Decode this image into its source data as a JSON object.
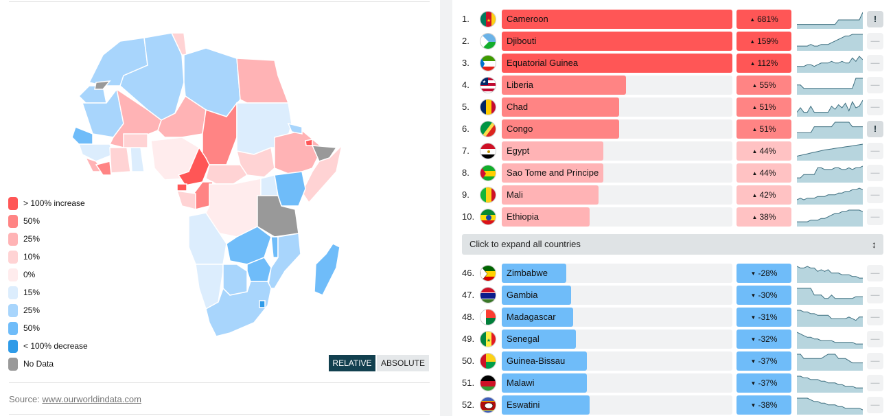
{
  "legend": {
    "items": [
      {
        "label": "> 100% increase",
        "color": "#ff5656"
      },
      {
        "label": "50%",
        "color": "#ff8484"
      },
      {
        "label": "25%",
        "color": "#ffb3b5"
      },
      {
        "label": "10%",
        "color": "#ffd3d4"
      },
      {
        "label": "0%",
        "color": "#ffeced"
      },
      {
        "label": "15%",
        "color": "#dcedfd"
      },
      {
        "label": "25%",
        "color": "#a8d5fc"
      },
      {
        "label": "50%",
        "color": "#6fbcf9"
      },
      {
        "label": "< 100% decrease",
        "color": "#2f9be8"
      },
      {
        "label": "No Data",
        "color": "#999999"
      }
    ]
  },
  "toggle": {
    "relative_label": "RELATIVE",
    "absolute_label": "ABSOLUTE",
    "active": "relative"
  },
  "source": {
    "prefix": "Source: ",
    "link_text": "www.ourworldindata.com"
  },
  "map": {
    "region": "Africa",
    "accent_dark": "#12404f"
  },
  "expand_label": "Click to expand all countries",
  "expand_icon": "updown-arrow-icon",
  "top_countries": [
    {
      "rank": "1.",
      "name": "Cameroon",
      "change": "681%",
      "direction": "up",
      "fill": 1.0,
      "tier": "high",
      "alert": true,
      "flag": "cameroon-flag-icon",
      "trend": [
        2,
        2,
        2,
        2,
        2,
        2,
        2,
        2,
        2,
        2,
        2,
        2,
        5,
        5,
        5,
        5,
        5,
        5,
        5,
        10
      ]
    },
    {
      "rank": "2.",
      "name": "Djibouti",
      "change": "159%",
      "direction": "up",
      "fill": 1.0,
      "tier": "high",
      "alert": false,
      "flag": "djibouti-flag-icon",
      "trend": [
        2,
        2,
        2,
        2,
        3,
        2,
        2,
        3,
        3,
        3,
        4,
        5,
        6,
        7,
        8,
        8,
        9,
        9,
        9,
        9
      ]
    },
    {
      "rank": "3.",
      "name": "Equatorial Guinea",
      "change": "112%",
      "direction": "up",
      "fill": 1.0,
      "tier": "high",
      "alert": false,
      "flag": "equatorial-guinea-flag-icon",
      "trend": [
        3,
        3,
        3,
        4,
        4,
        3,
        4,
        5,
        5,
        5,
        6,
        5,
        5,
        6,
        5,
        5,
        8,
        6,
        9,
        7
      ]
    },
    {
      "rank": "4.",
      "name": "Liberia",
      "change": "55%",
      "direction": "up",
      "fill": 0.54,
      "tier": "mid",
      "alert": false,
      "flag": "liberia-flag-icon",
      "trend": [
        5,
        5,
        3,
        3,
        3,
        3,
        3,
        3,
        3,
        3,
        3,
        3,
        3,
        3,
        3,
        3,
        3,
        9,
        9,
        9
      ]
    },
    {
      "rank": "5.",
      "name": "Chad",
      "change": "51%",
      "direction": "up",
      "fill": 0.51,
      "tier": "mid",
      "alert": false,
      "flag": "chad-flag-icon",
      "trend": [
        2,
        5,
        2,
        2,
        6,
        2,
        2,
        2,
        2,
        2,
        6,
        4,
        7,
        5,
        8,
        3,
        9,
        5,
        6,
        10
      ]
    },
    {
      "rank": "6.",
      "name": "Congo",
      "change": "51%",
      "direction": "up",
      "fill": 0.51,
      "tier": "mid",
      "alert": true,
      "flag": "congo-flag-icon",
      "trend": [
        3,
        3,
        3,
        3,
        3,
        7,
        7,
        7,
        7,
        7,
        7,
        10,
        10,
        10,
        10,
        10,
        7,
        7,
        7,
        7
      ]
    },
    {
      "rank": "7.",
      "name": "Egypt",
      "change": "44%",
      "direction": "up",
      "fill": 0.44,
      "tier": "low",
      "alert": false,
      "flag": "egypt-flag-icon",
      "trend": [
        2,
        2.5,
        3,
        3.5,
        4,
        4.5,
        5,
        5.5,
        6,
        6.3,
        6.6,
        7,
        7.3,
        7.6,
        8,
        8.3,
        8.6,
        9,
        9.3,
        9.7
      ]
    },
    {
      "rank": "8.",
      "name": "Sao Tome and Principe",
      "change": "44%",
      "direction": "up",
      "fill": 0.44,
      "tier": "low",
      "alert": false,
      "flag": "sao-tome-flag-icon",
      "trend": [
        2,
        2,
        4,
        4,
        4,
        4,
        8,
        8,
        7,
        7,
        7,
        8,
        8,
        7,
        7,
        8,
        7,
        8,
        8,
        9
      ]
    },
    {
      "rank": "9.",
      "name": "Mali",
      "change": "42%",
      "direction": "up",
      "fill": 0.42,
      "tier": "low",
      "alert": false,
      "flag": "mali-flag-icon",
      "trend": [
        2,
        3,
        2,
        3,
        3,
        3,
        4,
        4,
        4,
        5,
        5,
        5,
        6,
        6,
        7,
        7,
        8,
        8,
        9,
        8
      ]
    },
    {
      "rank": "10.",
      "name": "Ethiopia",
      "change": "38%",
      "direction": "up",
      "fill": 0.38,
      "tier": "low",
      "alert": false,
      "flag": "ethiopia-flag-icon",
      "trend": [
        2,
        2,
        2,
        2,
        3,
        3,
        3,
        4,
        4,
        5,
        6,
        7,
        7,
        8,
        8,
        9,
        9,
        9,
        9,
        8
      ]
    }
  ],
  "bottom_countries": [
    {
      "rank": "46.",
      "name": "Zimbabwe",
      "change": "-28%",
      "direction": "down",
      "fill": 0.28,
      "alert": false,
      "flag": "zimbabwe-flag-icon",
      "trend": [
        9,
        8,
        8,
        9,
        8,
        8,
        6,
        7,
        6,
        7,
        5,
        5,
        5,
        4,
        4,
        4,
        3,
        3,
        2,
        2
      ]
    },
    {
      "rank": "47.",
      "name": "Gambia",
      "change": "-30%",
      "direction": "down",
      "fill": 0.3,
      "alert": false,
      "flag": "gambia-flag-icon",
      "trend": [
        9,
        9,
        9,
        9,
        9,
        5,
        5,
        5,
        3,
        3,
        5,
        3,
        3,
        3,
        3,
        3,
        3,
        4,
        4,
        4
      ]
    },
    {
      "rank": "48.",
      "name": "Madagascar",
      "change": "-31%",
      "direction": "down",
      "fill": 0.31,
      "alert": false,
      "flag": "madagascar-flag-icon",
      "trend": [
        9,
        9,
        8,
        8,
        7,
        7,
        6,
        6,
        6,
        6,
        4,
        4,
        4,
        4,
        4,
        5,
        4,
        3,
        5,
        5
      ]
    },
    {
      "rank": "49.",
      "name": "Senegal",
      "change": "-32%",
      "direction": "down",
      "fill": 0.32,
      "alert": false,
      "flag": "senegal-flag-icon",
      "trend": [
        9,
        8,
        7,
        6,
        6,
        5,
        5,
        4,
        4,
        4,
        4,
        3,
        3,
        3,
        3,
        3,
        3,
        2,
        2,
        2
      ]
    },
    {
      "rank": "50.",
      "name": "Guinea-Bissau",
      "change": "-37%",
      "direction": "down",
      "fill": 0.37,
      "alert": false,
      "flag": "guinea-bissau-flag-icon",
      "trend": [
        7,
        7,
        5,
        5,
        5,
        5,
        5,
        5,
        6,
        7,
        7,
        7,
        5,
        5,
        5,
        4,
        3,
        3,
        3,
        3
      ]
    },
    {
      "rank": "51.",
      "name": "Malawi",
      "change": "-37%",
      "direction": "down",
      "fill": 0.37,
      "alert": false,
      "flag": "malawi-flag-icon",
      "trend": [
        9,
        9,
        8,
        8,
        7,
        7,
        7,
        6,
        6,
        5,
        5,
        5,
        4,
        4,
        3,
        3,
        3,
        2,
        2,
        2
      ]
    },
    {
      "rank": "52.",
      "name": "Eswatini",
      "change": "-38%",
      "direction": "down",
      "fill": 0.38,
      "alert": false,
      "flag": "eswatini-flag-icon",
      "trend": [
        9,
        9,
        9,
        9,
        8,
        7,
        7,
        6,
        6,
        5,
        5,
        5,
        4,
        4,
        3,
        3,
        3,
        3,
        3,
        2
      ]
    }
  ],
  "colors": {
    "high": "#ff5656",
    "mid": "#ff8484",
    "low": "#ffb3b5",
    "down": "#6fbcf9",
    "change_up_high": "#ff5656",
    "change_up_mid": "#ff8484",
    "change_up_low": "#ffc2c3",
    "change_down": "#6fbcf9",
    "spark_fill": "#b7d5de",
    "spark_line": "#3d6e7f"
  }
}
